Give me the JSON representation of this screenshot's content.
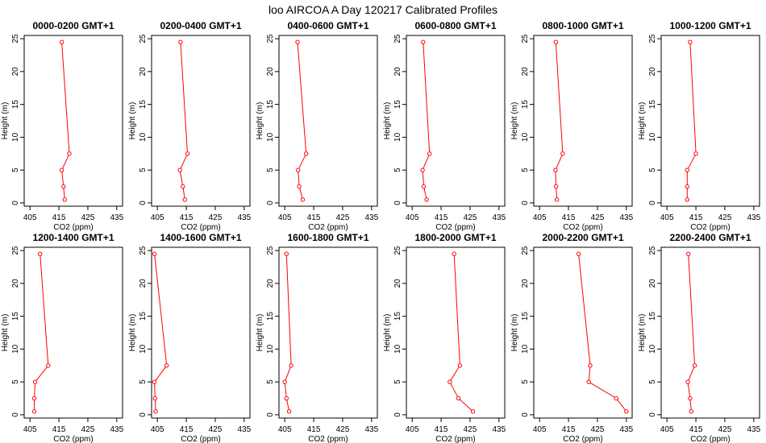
{
  "title": "loo AIRCOA A  Day 120217  Calibrated Profiles",
  "chart_data": {
    "type": "line",
    "title": "loo AIRCOA A  Day 120217  Calibrated Profiles",
    "xlabel": "CO2 (ppm)",
    "ylabel": "Height (m)",
    "xlim": [
      403,
      437
    ],
    "ylim": [
      -0.5,
      25.5
    ],
    "xticks": [
      405,
      415,
      425,
      435
    ],
    "yticks": [
      0,
      5,
      10,
      15,
      20,
      25
    ],
    "heights": [
      0.5,
      2.5,
      5,
      7.5,
      24.5
    ],
    "line_color": "#ff0000",
    "panels": [
      {
        "title": "0000-0200 GMT+1",
        "x": [
          417.0,
          416.6,
          416.0,
          418.6,
          416.0
        ]
      },
      {
        "title": "0200-0400 GMT+1",
        "x": [
          414.5,
          413.8,
          412.8,
          415.4,
          413.0
        ]
      },
      {
        "title": "0400-0600 GMT+1",
        "x": [
          411.2,
          410.0,
          409.6,
          412.4,
          409.4
        ]
      },
      {
        "title": "0600-0800 GMT+1",
        "x": [
          410.0,
          409.0,
          408.6,
          411.0,
          408.8
        ]
      },
      {
        "title": "0800-1000 GMT+1",
        "x": [
          411.0,
          410.7,
          410.5,
          413.0,
          410.6
        ]
      },
      {
        "title": "1000-1200 GMT+1",
        "x": [
          412.0,
          412.0,
          412.0,
          415.0,
          413.0
        ]
      },
      {
        "title": "1200-1400 GMT+1",
        "x": [
          406.5,
          406.5,
          406.8,
          411.3,
          408.5
        ]
      },
      {
        "title": "1400-1600 GMT+1",
        "x": [
          404.4,
          404.2,
          404.0,
          408.2,
          404.0
        ]
      },
      {
        "title": "1600-1800 GMT+1",
        "x": [
          406.5,
          405.6,
          405.0,
          407.2,
          405.6
        ]
      },
      {
        "title": "1800-2000 GMT+1",
        "x": [
          426.0,
          421.0,
          418.0,
          421.5,
          419.5
        ]
      },
      {
        "title": "2000-2200 GMT+1",
        "x": [
          435.0,
          431.5,
          422.0,
          422.5,
          418.5
        ]
      },
      {
        "title": "2200-2400 GMT+1",
        "x": [
          413.4,
          413.0,
          412.2,
          414.6,
          412.4
        ]
      }
    ]
  }
}
